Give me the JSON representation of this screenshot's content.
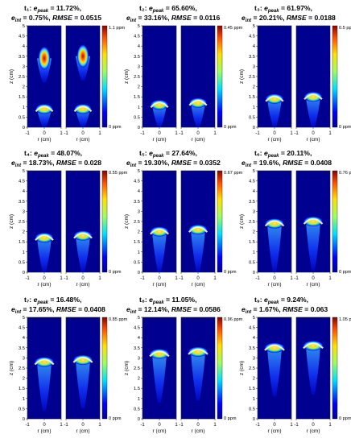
{
  "chart_data": [
    {
      "type": "heatmap",
      "time": "t₁",
      "e_peak": "11.72%",
      "e_int": "0.75%",
      "rmse": "0.0515",
      "colorbar": {
        "max_label": "1.1 ppm",
        "min_label": "0 ppm"
      },
      "pair_max_z": [
        [
          3.4,
          3.5
        ],
        [
          0.9,
          0.9
        ]
      ]
    },
    {
      "type": "heatmap",
      "time": "t₂",
      "e_peak": "65.60%",
      "e_int": "33.16%",
      "rmse": "0.0116",
      "colorbar": {
        "max_label": "0.45 ppm",
        "min_label": "0 ppm"
      },
      "pair_max_z": [
        [
          1.1,
          1.2
        ]
      ]
    },
    {
      "type": "heatmap",
      "time": "t₃",
      "e_peak": "61.97%",
      "e_int": "20.21%",
      "rmse": "0.0188",
      "colorbar": {
        "max_label": "0.5 ppm",
        "min_label": "0 ppm"
      },
      "pair_max_z": [
        [
          1.4,
          1.5
        ]
      ]
    },
    {
      "type": "heatmap",
      "time": "t₄",
      "e_peak": "48.07%",
      "e_int": "18.73%",
      "rmse": "0.028",
      "colorbar": {
        "max_label": "0.55 ppm",
        "min_label": "0 ppm"
      },
      "pair_max_z": [
        [
          1.7,
          1.8
        ]
      ]
    },
    {
      "type": "heatmap",
      "time": "t₅",
      "e_peak": "27.64%",
      "e_int": "19.30%",
      "rmse": "0.0352",
      "colorbar": {
        "max_label": "0.67 ppm",
        "min_label": "0 ppm"
      },
      "pair_max_z": [
        [
          2.0,
          2.1
        ]
      ]
    },
    {
      "type": "heatmap",
      "time": "t₆",
      "e_peak": "20.11%",
      "e_int": "19.6%",
      "rmse": "0.0408",
      "colorbar": {
        "max_label": "0.76 ppm",
        "min_label": "0 ppm"
      },
      "pair_max_z": [
        [
          2.4,
          2.5
        ]
      ]
    },
    {
      "type": "heatmap",
      "time": "t₇",
      "e_peak": "16.48%",
      "e_int": "17.65%",
      "rmse": "0.0408",
      "colorbar": {
        "max_label": "0.85 ppm",
        "min_label": "0 ppm"
      },
      "pair_max_z": [
        [
          2.8,
          2.9
        ]
      ]
    },
    {
      "type": "heatmap",
      "time": "t₈",
      "e_peak": "11.05%",
      "e_int": "12.14%",
      "rmse": "0.0586",
      "colorbar": {
        "max_label": "0.96 ppm",
        "min_label": "0 ppm"
      },
      "pair_max_z": [
        [
          3.2,
          3.3
        ]
      ]
    },
    {
      "type": "heatmap",
      "time": "t₉",
      "e_peak": "9.24%",
      "e_int": "1.67%",
      "rmse": "0.063",
      "colorbar": {
        "max_label": "1.05 ppm",
        "min_label": "0 ppm"
      },
      "pair_max_z": [
        [
          3.5,
          3.6
        ]
      ]
    }
  ],
  "axes": {
    "xlabel": "r (cm)",
    "ylabel": "z (cm)",
    "xlim": [
      -1,
      1
    ],
    "ylim": [
      0,
      5
    ],
    "x_ticks": [
      "-1",
      "0",
      "1"
    ],
    "y_ticks": [
      "0",
      "0.5",
      "1",
      "1.5",
      "2",
      "2.5",
      "3",
      "3.5",
      "4",
      "4.5",
      "5"
    ]
  },
  "labels": {
    "e_peak": "peak",
    "e_int": "int",
    "rmse": "RMSE"
  }
}
